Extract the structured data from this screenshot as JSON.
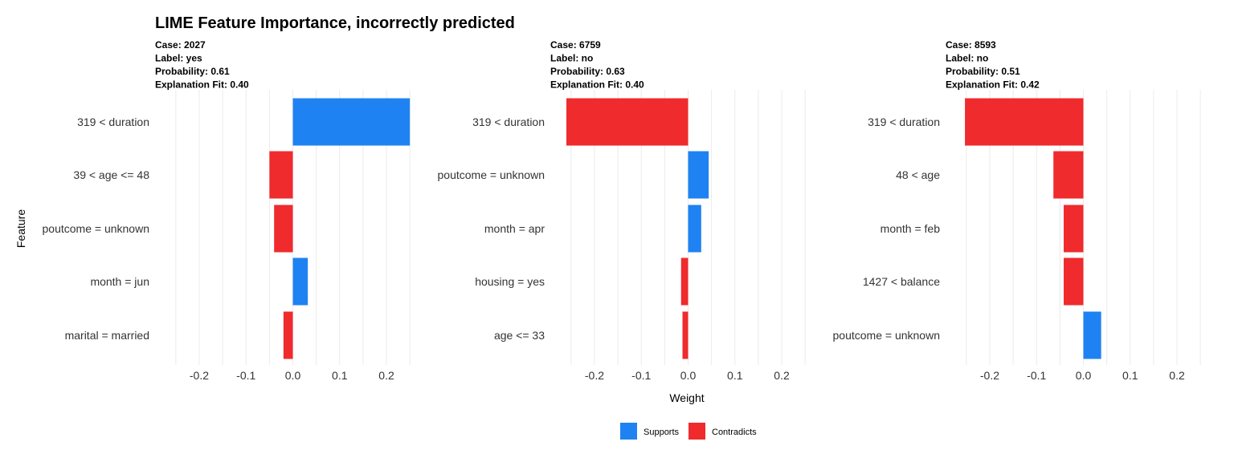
{
  "chart_data": {
    "type": "bar",
    "orientation": "horizontal",
    "title": "LIME Feature Importance, incorrectly predicted",
    "xlabel": "Weight",
    "ylabel": "Feature",
    "xlim": [
      -0.26,
      0.26
    ],
    "xticks": [
      -0.2,
      -0.1,
      0.0,
      0.1,
      0.2
    ],
    "xtick_labels": [
      "-0.2",
      "-0.1",
      "0.0",
      "0.1",
      "0.2"
    ],
    "grid": true,
    "legend_position": "bottom",
    "legend": [
      {
        "label": "Supports",
        "color": "#1f82f2"
      },
      {
        "label": "Contradicts",
        "color": "#ef2b2d"
      }
    ],
    "facets": [
      {
        "strip": [
          "Case: 2027",
          "Label: yes",
          "Probability: 0.61",
          "Explanation Fit: 0.40"
        ],
        "features": [
          "319 < duration",
          "39 < age <= 48",
          "poutcome = unknown",
          "month = jun",
          "marital = married"
        ],
        "weights": [
          0.25,
          -0.05,
          -0.04,
          0.032,
          -0.02
        ]
      },
      {
        "strip": [
          "Case: 6759",
          "Label: no",
          "Probability: 0.63",
          "Explanation Fit: 0.40"
        ],
        "features": [
          "319 < duration",
          "poutcome = unknown",
          "month = apr",
          "housing = yes",
          "age <= 33"
        ],
        "weights": [
          -0.26,
          0.044,
          0.028,
          -0.015,
          -0.012
        ]
      },
      {
        "strip": [
          "Case: 8593",
          "Label: no",
          "Probability: 0.51",
          "Explanation Fit: 0.42"
        ],
        "features": [
          "319 < duration",
          "48 < age",
          "month = feb",
          "1427 < balance",
          "poutcome = unknown"
        ],
        "weights": [
          -0.253,
          -0.064,
          -0.042,
          -0.042,
          0.038
        ]
      }
    ]
  }
}
